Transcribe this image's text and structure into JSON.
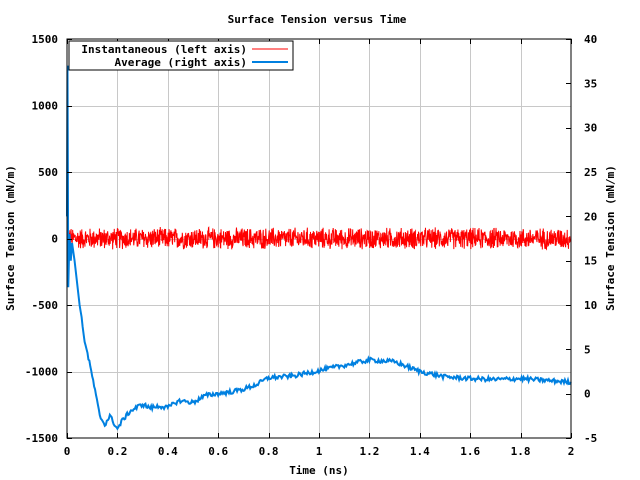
{
  "chart_data": {
    "type": "line",
    "title": "Surface Tension versus Time",
    "xlabel": "Time (ns)",
    "ylabel_left": "Surface Tension (mN/m)",
    "ylabel_right": "Surface Tension (mN/m)",
    "xlim": [
      0,
      2
    ],
    "ylim_left": [
      -1500,
      1500
    ],
    "ylim_right": [
      -5,
      40
    ],
    "grid": true,
    "legend_position": "top-left",
    "x_ticks": [
      0,
      0.2,
      0.4,
      0.6,
      0.8,
      1,
      1.2,
      1.4,
      1.6,
      1.8,
      2
    ],
    "x_tick_labels": [
      "0",
      "0.2",
      "0.4",
      "0.6",
      "0.8",
      "1",
      "1.2",
      "1.4",
      "1.6",
      "1.8",
      "2"
    ],
    "y_left_ticks": [
      -1500,
      -1000,
      -500,
      0,
      500,
      1000,
      1500
    ],
    "y_left_tick_labels": [
      "-1500",
      "-1000",
      "-500",
      "0",
      "500",
      "1000",
      "1500"
    ],
    "y_right_ticks": [
      -5,
      0,
      5,
      10,
      15,
      20,
      25,
      30,
      35,
      40
    ],
    "y_right_tick_labels": [
      "-5",
      "0",
      "5",
      "10",
      "15",
      "20",
      "25",
      "30",
      "35",
      "40"
    ],
    "series": [
      {
        "name": "Instantaneous (left axis)",
        "axis": "left",
        "color": "#ff0000",
        "mean": 0,
        "noise_amplitude": 90,
        "x_range": [
          0,
          2
        ]
      },
      {
        "name": "Average (right axis)",
        "axis": "right",
        "color": "#0080e0",
        "x": [
          0,
          0.002,
          0.005,
          0.01,
          0.015,
          0.02,
          0.03,
          0.05,
          0.07,
          0.1,
          0.13,
          0.15,
          0.17,
          0.2,
          0.22,
          0.25,
          0.28,
          0.3,
          0.33,
          0.37,
          0.4,
          0.43,
          0.45,
          0.5,
          0.55,
          0.6,
          0.65,
          0.7,
          0.75,
          0.8,
          0.9,
          1.0,
          1.1,
          1.2,
          1.3,
          1.4,
          1.5,
          1.6,
          1.7,
          1.8,
          1.9,
          2.0
        ],
        "y": [
          20,
          37,
          12,
          18,
          15,
          17,
          15,
          10,
          6,
          2,
          -2.5,
          -3.5,
          -2.5,
          -4,
          -3,
          -2,
          -1.5,
          -1.2,
          -1.6,
          -1.4,
          -1.6,
          -1.0,
          -0.8,
          -1.0,
          -0.2,
          0,
          0.2,
          0.5,
          1.0,
          1.8,
          2.0,
          2.6,
          3.2,
          3.8,
          3.6,
          2.5,
          1.9,
          1.7,
          1.6,
          1.7,
          1.5,
          1.3
        ]
      }
    ]
  }
}
